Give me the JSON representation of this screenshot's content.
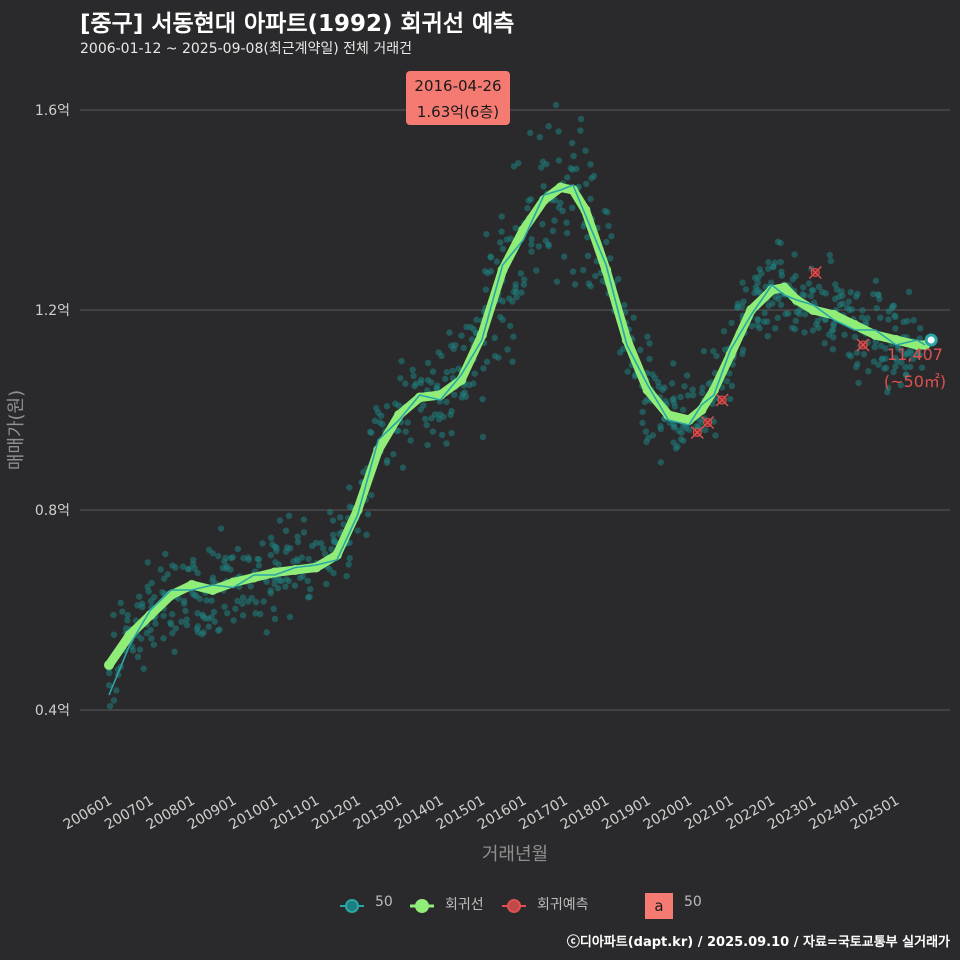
{
  "title": "[중구] 서동현대 아파트(1992) 회귀선 예측",
  "subtitle": "2006-01-12 ~ 2025-09-08(최근계약일) 전체 거래건",
  "credit": "ⓒ디아파트(dapt.kr) / 2025.09.10 / 자료=국토교통부 실거래가",
  "colors": {
    "background": "#2a2a2c",
    "scatter": "#1f7f7f",
    "moving_avg": "#2aa6a6",
    "regression": "#90ee78",
    "prediction": "#e05050",
    "label_box": "#f47a72"
  },
  "chart_data": {
    "type": "scatter",
    "title": "[중구] 서동현대 아파트(1992) 회귀선 예측",
    "xlabel": "거래년월",
    "ylabel": "매매가(원)",
    "x_ticks": [
      "200601",
      "200701",
      "200801",
      "200901",
      "201001",
      "201101",
      "201201",
      "201301",
      "201401",
      "201501",
      "201601",
      "201701",
      "201801",
      "201901",
      "202001",
      "202101",
      "202201",
      "202301",
      "202401",
      "202501"
    ],
    "y_ticks": [
      {
        "value": 0.4,
        "label": "0.4억"
      },
      {
        "value": 0.8,
        "label": "0.8억"
      },
      {
        "value": 1.2,
        "label": "1.2억"
      },
      {
        "value": 1.6,
        "label": "1.6억"
      }
    ],
    "xlim": [
      2005.3,
      2026.3
    ],
    "ylim": [
      0.24,
      1.66
    ],
    "series": [
      {
        "name": "회귀선",
        "type": "line",
        "x": [
          2006.0,
          2006.5,
          2007.0,
          2007.5,
          2008.0,
          2008.5,
          2009.0,
          2009.5,
          2010.0,
          2010.5,
          2011.0,
          2011.5,
          2012.0,
          2012.5,
          2013.0,
          2013.5,
          2014.0,
          2014.5,
          2015.0,
          2015.5,
          2016.0,
          2016.5,
          2016.9,
          2017.2,
          2017.5,
          2018.0,
          2018.5,
          2019.0,
          2019.5,
          2020.0,
          2020.3,
          2020.6,
          2021.0,
          2021.5,
          2022.0,
          2022.3,
          2022.6,
          2023.0,
          2023.5,
          2024.0,
          2024.5,
          2025.0,
          2025.5,
          2025.7
        ],
        "y": [
          0.49,
          0.55,
          0.59,
          0.63,
          0.65,
          0.64,
          0.655,
          0.665,
          0.675,
          0.68,
          0.685,
          0.71,
          0.8,
          0.92,
          0.99,
          1.025,
          1.03,
          1.06,
          1.15,
          1.28,
          1.36,
          1.42,
          1.445,
          1.44,
          1.4,
          1.28,
          1.14,
          1.04,
          0.99,
          0.98,
          1.0,
          1.04,
          1.11,
          1.2,
          1.24,
          1.245,
          1.22,
          1.2,
          1.19,
          1.17,
          1.15,
          1.14,
          1.13,
          1.13
        ]
      },
      {
        "name": "50",
        "type": "moving_average",
        "x": [
          2006.0,
          2006.5,
          2007.0,
          2007.5,
          2008.0,
          2008.5,
          2009.0,
          2009.5,
          2010.0,
          2010.5,
          2011.0,
          2011.5,
          2012.0,
          2012.5,
          2013.0,
          2013.5,
          2014.0,
          2014.5,
          2015.0,
          2015.5,
          2016.0,
          2016.5,
          2016.9,
          2017.2,
          2017.5,
          2018.0,
          2018.5,
          2019.0,
          2019.5,
          2020.0,
          2020.3,
          2020.6,
          2021.0,
          2021.5,
          2022.0,
          2022.3,
          2022.6,
          2023.0,
          2023.5,
          2024.0,
          2024.5,
          2025.0,
          2025.5,
          2025.7
        ],
        "y": [
          0.43,
          0.53,
          0.6,
          0.64,
          0.64,
          0.65,
          0.645,
          0.67,
          0.67,
          0.685,
          0.69,
          0.7,
          0.79,
          0.94,
          0.98,
          1.03,
          1.02,
          1.07,
          1.14,
          1.29,
          1.34,
          1.43,
          1.44,
          1.45,
          1.39,
          1.29,
          1.13,
          1.05,
          0.98,
          0.97,
          1.01,
          1.03,
          1.12,
          1.19,
          1.25,
          1.23,
          1.22,
          1.21,
          1.18,
          1.16,
          1.16,
          1.13,
          1.14,
          1.13
        ]
      },
      {
        "name": "회귀예측",
        "type": "scatter",
        "x": [
          2020.2,
          2020.45,
          2020.8,
          2023.05,
          2024.2
        ],
        "y": [
          0.955,
          0.975,
          1.02,
          1.275,
          1.13
        ]
      }
    ],
    "scatter_seed": 7,
    "annotations": [
      {
        "label": "max",
        "date": "2016-04-26",
        "value_text": "1.63억(6층)",
        "x": 2016.32,
        "y": 1.63
      },
      {
        "label": "last",
        "price": "11,407",
        "area": "(~50㎡)",
        "x": 2025.7,
        "y": 1.14
      }
    ]
  },
  "legend": {
    "items": [
      {
        "label": "50"
      },
      {
        "label": "회귀선"
      },
      {
        "label": "회귀예측"
      }
    ],
    "box_letter": "a",
    "box_label": "50"
  }
}
